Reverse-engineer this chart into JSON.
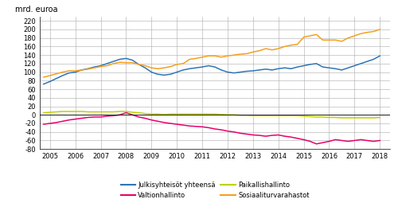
{
  "title": "mrd. euroa",
  "xlim": [
    2004.6,
    2018.4
  ],
  "ylim": [
    -80,
    230
  ],
  "yticks": [
    -80,
    -60,
    -40,
    -20,
    0,
    20,
    40,
    60,
    80,
    100,
    120,
    140,
    160,
    180,
    200,
    220
  ],
  "xticks": [
    2005,
    2006,
    2007,
    2008,
    2009,
    2010,
    2011,
    2012,
    2013,
    2014,
    2015,
    2016,
    2017,
    2018
  ],
  "colors": {
    "julkisyhteisot": "#2e75b6",
    "valtionhallinto": "#e8006e",
    "paikallishallinto": "#c0d000",
    "sosiaaliturvarahastot": "#f5a020"
  },
  "legend_order": [
    {
      "label": "Julkisyhteisöt yhteensä",
      "color": "#2e75b6"
    },
    {
      "label": "Valtionhallinto",
      "color": "#e8006e"
    },
    {
      "label": "Paikallishallinto",
      "color": "#c0d000"
    },
    {
      "label": "Sosiaaliturvarahastot",
      "color": "#f5a020"
    }
  ],
  "julkisyhteisot": {
    "x": [
      2004.75,
      2005.0,
      2005.25,
      2005.5,
      2005.75,
      2006.0,
      2006.25,
      2006.5,
      2006.75,
      2007.0,
      2007.25,
      2007.5,
      2007.75,
      2008.0,
      2008.25,
      2008.5,
      2008.75,
      2009.0,
      2009.25,
      2009.5,
      2009.75,
      2010.0,
      2010.25,
      2010.5,
      2010.75,
      2011.0,
      2011.25,
      2011.5,
      2011.75,
      2012.0,
      2012.25,
      2012.5,
      2012.75,
      2013.0,
      2013.25,
      2013.5,
      2013.75,
      2014.0,
      2014.25,
      2014.5,
      2014.75,
      2015.0,
      2015.25,
      2015.5,
      2015.75,
      2016.0,
      2016.25,
      2016.5,
      2016.75,
      2017.0,
      2017.25,
      2017.5,
      2017.75,
      2018.0
    ],
    "y": [
      72,
      78,
      85,
      92,
      98,
      100,
      105,
      108,
      112,
      115,
      120,
      125,
      130,
      132,
      128,
      118,
      110,
      100,
      95,
      93,
      95,
      100,
      105,
      108,
      110,
      112,
      115,
      112,
      105,
      100,
      98,
      100,
      102,
      103,
      105,
      107,
      105,
      108,
      110,
      108,
      112,
      115,
      118,
      120,
      112,
      110,
      108,
      105,
      110,
      115,
      120,
      125,
      130,
      138
    ]
  },
  "valtionhallinto": {
    "x": [
      2004.75,
      2005.0,
      2005.25,
      2005.5,
      2005.75,
      2006.0,
      2006.25,
      2006.5,
      2006.75,
      2007.0,
      2007.25,
      2007.5,
      2007.75,
      2008.0,
      2008.25,
      2008.5,
      2008.75,
      2009.0,
      2009.25,
      2009.5,
      2009.75,
      2010.0,
      2010.25,
      2010.5,
      2010.75,
      2011.0,
      2011.25,
      2011.5,
      2011.75,
      2012.0,
      2012.25,
      2012.5,
      2012.75,
      2013.0,
      2013.25,
      2013.5,
      2013.75,
      2014.0,
      2014.25,
      2014.5,
      2014.75,
      2015.0,
      2015.25,
      2015.5,
      2015.75,
      2016.0,
      2016.25,
      2016.5,
      2016.75,
      2017.0,
      2017.25,
      2017.5,
      2017.75,
      2018.0
    ],
    "y": [
      -22,
      -20,
      -18,
      -15,
      -12,
      -10,
      -8,
      -6,
      -5,
      -5,
      -3,
      -2,
      0,
      5,
      0,
      -5,
      -8,
      -12,
      -15,
      -18,
      -20,
      -22,
      -24,
      -26,
      -27,
      -28,
      -30,
      -33,
      -35,
      -38,
      -40,
      -43,
      -45,
      -47,
      -48,
      -50,
      -48,
      -47,
      -50,
      -52,
      -55,
      -58,
      -62,
      -68,
      -65,
      -62,
      -58,
      -60,
      -62,
      -60,
      -58,
      -60,
      -62,
      -60
    ]
  },
  "paikallishallinto": {
    "x": [
      2004.75,
      2005.0,
      2005.25,
      2005.5,
      2005.75,
      2006.0,
      2006.25,
      2006.5,
      2006.75,
      2007.0,
      2007.25,
      2007.5,
      2007.75,
      2008.0,
      2008.25,
      2008.5,
      2008.75,
      2009.0,
      2009.25,
      2009.5,
      2009.75,
      2010.0,
      2010.25,
      2010.5,
      2010.75,
      2011.0,
      2011.25,
      2011.5,
      2011.75,
      2012.0,
      2012.25,
      2012.5,
      2012.75,
      2013.0,
      2013.25,
      2013.5,
      2013.75,
      2014.0,
      2014.25,
      2014.5,
      2014.75,
      2015.0,
      2015.25,
      2015.5,
      2015.75,
      2016.0,
      2016.25,
      2016.5,
      2016.75,
      2017.0,
      2017.25,
      2017.5,
      2017.75,
      2018.0
    ],
    "y": [
      5,
      6,
      7,
      8,
      8,
      8,
      8,
      7,
      7,
      7,
      7,
      7,
      8,
      8,
      6,
      5,
      3,
      2,
      2,
      1,
      2,
      2,
      2,
      2,
      2,
      2,
      2,
      2,
      1,
      0,
      0,
      -1,
      -1,
      -2,
      -2,
      -2,
      -2,
      -2,
      -2,
      -2,
      -2,
      -3,
      -4,
      -5,
      -5,
      -6,
      -6,
      -7,
      -7,
      -7,
      -7,
      -7,
      -7,
      -6
    ]
  },
  "sosiaaliturvarahastot": {
    "x": [
      2004.75,
      2005.0,
      2005.25,
      2005.5,
      2005.75,
      2006.0,
      2006.25,
      2006.5,
      2006.75,
      2007.0,
      2007.25,
      2007.5,
      2007.75,
      2008.0,
      2008.25,
      2008.5,
      2008.75,
      2009.0,
      2009.25,
      2009.5,
      2009.75,
      2010.0,
      2010.25,
      2010.5,
      2010.75,
      2011.0,
      2011.25,
      2011.5,
      2011.75,
      2012.0,
      2012.25,
      2012.5,
      2012.75,
      2013.0,
      2013.25,
      2013.5,
      2013.75,
      2014.0,
      2014.25,
      2014.5,
      2014.75,
      2015.0,
      2015.25,
      2015.5,
      2015.75,
      2016.0,
      2016.25,
      2016.5,
      2016.75,
      2017.0,
      2017.25,
      2017.5,
      2017.75,
      2018.0
    ],
    "y": [
      88,
      92,
      96,
      100,
      103,
      103,
      105,
      107,
      110,
      113,
      115,
      120,
      123,
      122,
      122,
      118,
      115,
      110,
      108,
      110,
      113,
      118,
      120,
      130,
      132,
      135,
      138,
      138,
      135,
      138,
      140,
      142,
      143,
      147,
      150,
      155,
      152,
      155,
      160,
      163,
      165,
      182,
      185,
      188,
      175,
      175,
      175,
      172,
      180,
      185,
      190,
      193,
      195,
      200
    ]
  },
  "background_color": "#ffffff",
  "grid_color": "#aaaaaa",
  "zero_line_color": "#000000"
}
